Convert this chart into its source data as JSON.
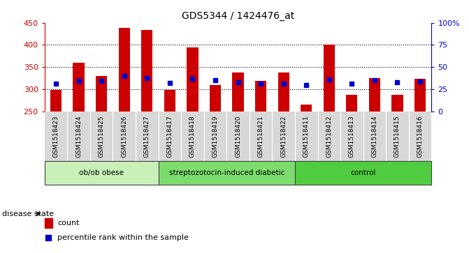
{
  "title": "GDS5344 / 1424476_at",
  "samples": [
    "GSM1518423",
    "GSM1518424",
    "GSM1518425",
    "GSM1518426",
    "GSM1518427",
    "GSM1518417",
    "GSM1518418",
    "GSM1518419",
    "GSM1518420",
    "GSM1518421",
    "GSM1518422",
    "GSM1518411",
    "GSM1518412",
    "GSM1518413",
    "GSM1518414",
    "GSM1518415",
    "GSM1518416"
  ],
  "bar_values": [
    298,
    360,
    330,
    438,
    433,
    298,
    394,
    310,
    337,
    319,
    338,
    265,
    400,
    288,
    325,
    288,
    323
  ],
  "percentile_values": [
    312,
    319,
    319,
    330,
    325,
    314,
    324,
    320,
    316,
    313,
    313,
    310,
    322,
    312,
    320,
    316,
    317
  ],
  "groups": [
    {
      "label": "ob/ob obese",
      "start": 0,
      "end": 5,
      "color": "#c8f0b8"
    },
    {
      "label": "streptozotocin-induced diabetic",
      "start": 5,
      "end": 11,
      "color": "#7cdc6c"
    },
    {
      "label": "control",
      "start": 11,
      "end": 17,
      "color": "#50cc40"
    }
  ],
  "bar_color": "#cc0000",
  "percentile_color": "#0000cc",
  "ymin": 250,
  "ymax": 450,
  "yticks_left": [
    250,
    300,
    350,
    400,
    450
  ],
  "grid_values": [
    300,
    350,
    400
  ],
  "plot_bg_color": "#ffffff",
  "sample_area_color": "#d8d8d8",
  "disease_state_label": "disease state",
  "legend_count": "count",
  "legend_percentile": "percentile rank within the sample",
  "bar_width": 0.5
}
